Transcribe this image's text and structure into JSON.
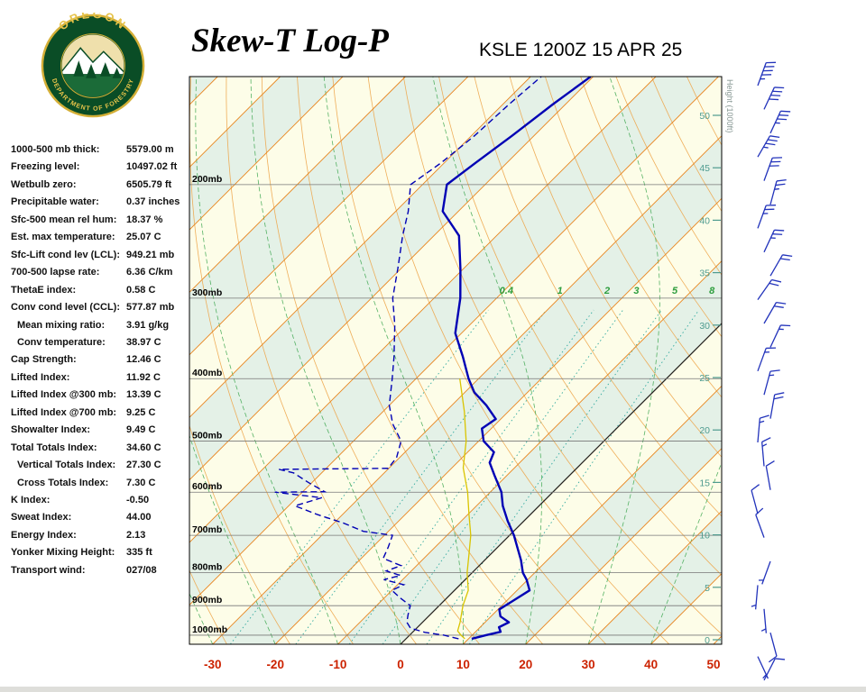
{
  "header": {
    "title": "Skew-T Log-P",
    "station": "KSLE 1200Z 15 APR 25"
  },
  "logo": {
    "top_text": "OREGON",
    "bottom_text": "DEPARTMENT OF FORESTRY"
  },
  "indices": [
    {
      "label": "1000-500 mb thick:",
      "value": "5579.00 m",
      "indent": false
    },
    {
      "label": "Freezing level:",
      "value": "10497.02 ft",
      "indent": false
    },
    {
      "label": "Wetbulb zero:",
      "value": "6505.79 ft",
      "indent": false
    },
    {
      "label": "Precipitable water:",
      "value": "0.37 inches",
      "indent": false
    },
    {
      "label": "Sfc-500 mean rel hum:",
      "value": "18.37 %",
      "indent": false
    },
    {
      "label": "Est. max temperature:",
      "value": "25.07 C",
      "indent": false
    },
    {
      "label": "Sfc-Lift cond lev (LCL):",
      "value": "949.21 mb",
      "indent": false
    },
    {
      "label": "700-500 lapse rate:",
      "value": "6.36 C/km",
      "indent": false
    },
    {
      "label": "ThetaE index:",
      "value": "0.58 C",
      "indent": false
    },
    {
      "label": "Conv cond level (CCL):",
      "value": "577.87 mb",
      "indent": false
    },
    {
      "label": "Mean mixing ratio:",
      "value": "3.91 g/kg",
      "indent": true
    },
    {
      "label": "Conv temperature:",
      "value": "38.97 C",
      "indent": true
    },
    {
      "label": "Cap Strength:",
      "value": "12.46 C",
      "indent": false
    },
    {
      "label": "Lifted Index:",
      "value": "11.92 C",
      "indent": false
    },
    {
      "label": "Lifted Index @300 mb:",
      "value": "13.39 C",
      "indent": false
    },
    {
      "label": "Lifted Index @700 mb:",
      "value": "9.25 C",
      "indent": false
    },
    {
      "label": "Showalter Index:",
      "value": "9.49 C",
      "indent": false
    },
    {
      "label": "Total Totals Index:",
      "value": "34.60 C",
      "indent": false
    },
    {
      "label": "Vertical Totals Index:",
      "value": "27.30 C",
      "indent": true
    },
    {
      "label": "Cross Totals Index:",
      "value": "7.30 C",
      "indent": true
    },
    {
      "label": "K Index:",
      "value": "-0.50",
      "indent": false
    },
    {
      "label": "Sweat Index:",
      "value": "44.00",
      "indent": false
    },
    {
      "label": "Energy Index:",
      "value": "2.13",
      "indent": false
    },
    {
      "label": "Yonker Mixing Height:",
      "value": "335 ft",
      "indent": false
    },
    {
      "label": "Transport wind:",
      "value": "027/08",
      "indent": false
    }
  ],
  "chart_data": {
    "type": "skewt-log-p",
    "title": "Skew-T Log-P",
    "station": "KSLE 1200Z 15 APR 25",
    "pressure_levels_mb": [
      200,
      300,
      400,
      500,
      600,
      700,
      800,
      900,
      1000
    ],
    "pressure_label_suffix": "mb",
    "temp_axis_c": [
      -30,
      -20,
      -10,
      0,
      10,
      20,
      30,
      40,
      50
    ],
    "height_axis": {
      "title": "Height (1000ft)",
      "ticks": [
        0,
        5,
        10,
        15,
        20,
        25,
        30,
        35,
        40,
        45,
        50
      ]
    },
    "mixing_ratio_gkg": [
      0.4,
      1,
      2,
      3,
      5,
      8
    ],
    "isotherms_c": {
      "min": -130,
      "max": 60,
      "step": 10
    },
    "dry_adiabats_theta_c": [
      -40,
      -30,
      -20,
      -10,
      0,
      10,
      20,
      30,
      40,
      50,
      60,
      70,
      80,
      90,
      100,
      110,
      120,
      130,
      140,
      150,
      160
    ],
    "moist_adiabats_start_c": [
      -30,
      -20,
      -10,
      0,
      10,
      20,
      30,
      40
    ],
    "colors": {
      "temperature": "#0000b4",
      "dewpoint": "#0000b4",
      "wetbulb": "#d9c400",
      "isotherm": "#e8851e",
      "dry_adiabat": "#eda54a",
      "moist_adiabat": "#44aa55",
      "mixing_ratio": "#33aaa0",
      "mixing_label": "#2e9e3e",
      "band_cream": "#fdfde8",
      "band_green": "#e4f1e7",
      "pressure_line": "#777777",
      "temp_axis": "#cc2200",
      "height_axis": "#4e9b8f",
      "wind_barb": "#2233bb",
      "zero_isotherm": "#222222"
    },
    "sounding": {
      "temperature": [
        [
          1013,
          10.5
        ],
        [
          1000,
          12.2
        ],
        [
          988,
          14.0
        ],
        [
          972,
          13.0
        ],
        [
          955,
          13.8
        ],
        [
          935,
          11.5
        ],
        [
          912,
          10.2
        ],
        [
          885,
          11.0
        ],
        [
          852,
          12.0
        ],
        [
          820,
          9.8
        ],
        [
          800,
          8.1
        ],
        [
          765,
          5.8
        ],
        [
          735,
          3.5
        ],
        [
          700,
          0.7
        ],
        [
          665,
          -2.6
        ],
        [
          630,
          -5.8
        ],
        [
          600,
          -8.2
        ],
        [
          565,
          -12.0
        ],
        [
          540,
          -14.8
        ],
        [
          520,
          -15.8
        ],
        [
          500,
          -19.2
        ],
        [
          478,
          -21.5
        ],
        [
          462,
          -20.8
        ],
        [
          440,
          -24.5
        ],
        [
          420,
          -28.5
        ],
        [
          400,
          -31.6
        ],
        [
          370,
          -36.0
        ],
        [
          340,
          -41.0
        ],
        [
          300,
          -45.8
        ],
        [
          270,
          -50.5
        ],
        [
          240,
          -56.0
        ],
        [
          220,
          -62.5
        ],
        [
          200,
          -66.1
        ],
        [
          185,
          -65.0
        ],
        [
          168,
          -63.5
        ],
        [
          150,
          -62.0
        ],
        [
          136,
          -60.4
        ]
      ],
      "dewpoint": [
        [
          1013,
          8.4
        ],
        [
          1000,
          5.5
        ],
        [
          990,
          2.0
        ],
        [
          975,
          -1.0
        ],
        [
          955,
          -2.5
        ],
        [
          930,
          -3.5
        ],
        [
          900,
          -4.6
        ],
        [
          875,
          -7.5
        ],
        [
          852,
          -10.0
        ],
        [
          835,
          -9.0
        ],
        [
          820,
          -13.0
        ],
        [
          808,
          -11.0
        ],
        [
          795,
          -14.0
        ],
        [
          780,
          -12.5
        ],
        [
          760,
          -16.5
        ],
        [
          730,
          -17.5
        ],
        [
          700,
          -18.7
        ],
        [
          690,
          -24.0
        ],
        [
          670,
          -28.5
        ],
        [
          650,
          -34.0
        ],
        [
          630,
          -39.0
        ],
        [
          612,
          -36.0
        ],
        [
          600,
          -44.4
        ],
        [
          599,
          -36.5
        ],
        [
          580,
          -40.5
        ],
        [
          560,
          -44.5
        ],
        [
          553,
          -47.4
        ],
        [
          551,
          -30.1
        ],
        [
          530,
          -30.5
        ],
        [
          500,
          -32.4
        ],
        [
          470,
          -36.5
        ],
        [
          440,
          -40.0
        ],
        [
          400,
          -43.8
        ],
        [
          370,
          -47.0
        ],
        [
          330,
          -52.0
        ],
        [
          300,
          -56.6
        ],
        [
          270,
          -60.5
        ],
        [
          240,
          -65.0
        ],
        [
          220,
          -68.0
        ],
        [
          200,
          -71.9
        ],
        [
          185,
          -70.5
        ],
        [
          168,
          -69.5
        ],
        [
          150,
          -69.0
        ],
        [
          136,
          -68.3
        ]
      ],
      "wetbulb": [
        [
          1013,
          9.4
        ],
        [
          1000,
          8.2
        ],
        [
          985,
          7.0
        ],
        [
          955,
          6.0
        ],
        [
          900,
          3.8
        ],
        [
          852,
          2.2
        ],
        [
          800,
          -0.8
        ],
        [
          750,
          -3.4
        ],
        [
          700,
          -6.2
        ],
        [
          650,
          -9.8
        ],
        [
          600,
          -13.6
        ],
        [
          550,
          -18.2
        ],
        [
          500,
          -22.0
        ],
        [
          450,
          -27.0
        ],
        [
          400,
          -33.0
        ]
      ]
    },
    "wind_barbs": [
      {
        "dir": 20,
        "spd": 45
      },
      {
        "dir": 25,
        "spd": 40
      },
      {
        "dir": 25,
        "spd": 35
      },
      {
        "dir": 30,
        "spd": 35
      },
      {
        "dir": 20,
        "spd": 30
      },
      {
        "dir": 15,
        "spd": 25
      },
      {
        "dir": 20,
        "spd": 25
      },
      {
        "dir": 25,
        "spd": 25
      },
      {
        "dir": 30,
        "spd": 20
      },
      {
        "dir": 35,
        "spd": 20
      },
      {
        "dir": 30,
        "spd": 20
      },
      {
        "dir": 25,
        "spd": 15
      },
      {
        "dir": 20,
        "spd": 15
      },
      {
        "dir": 15,
        "spd": 15
      },
      {
        "dir": 10,
        "spd": 20
      },
      {
        "dir": 5,
        "spd": 15
      },
      {
        "dir": 355,
        "spd": 15
      },
      {
        "dir": 350,
        "spd": 10
      },
      {
        "dir": 345,
        "spd": 10
      },
      {
        "dir": 340,
        "spd": 10
      },
      {
        "dir": 200,
        "spd": 5
      },
      {
        "dir": 185,
        "spd": 5
      },
      {
        "dir": 175,
        "spd": 5
      },
      {
        "dir": 165,
        "spd": 8
      },
      {
        "dir": 155,
        "spd": 5
      },
      {
        "dir": 27,
        "spd": 8
      }
    ]
  }
}
